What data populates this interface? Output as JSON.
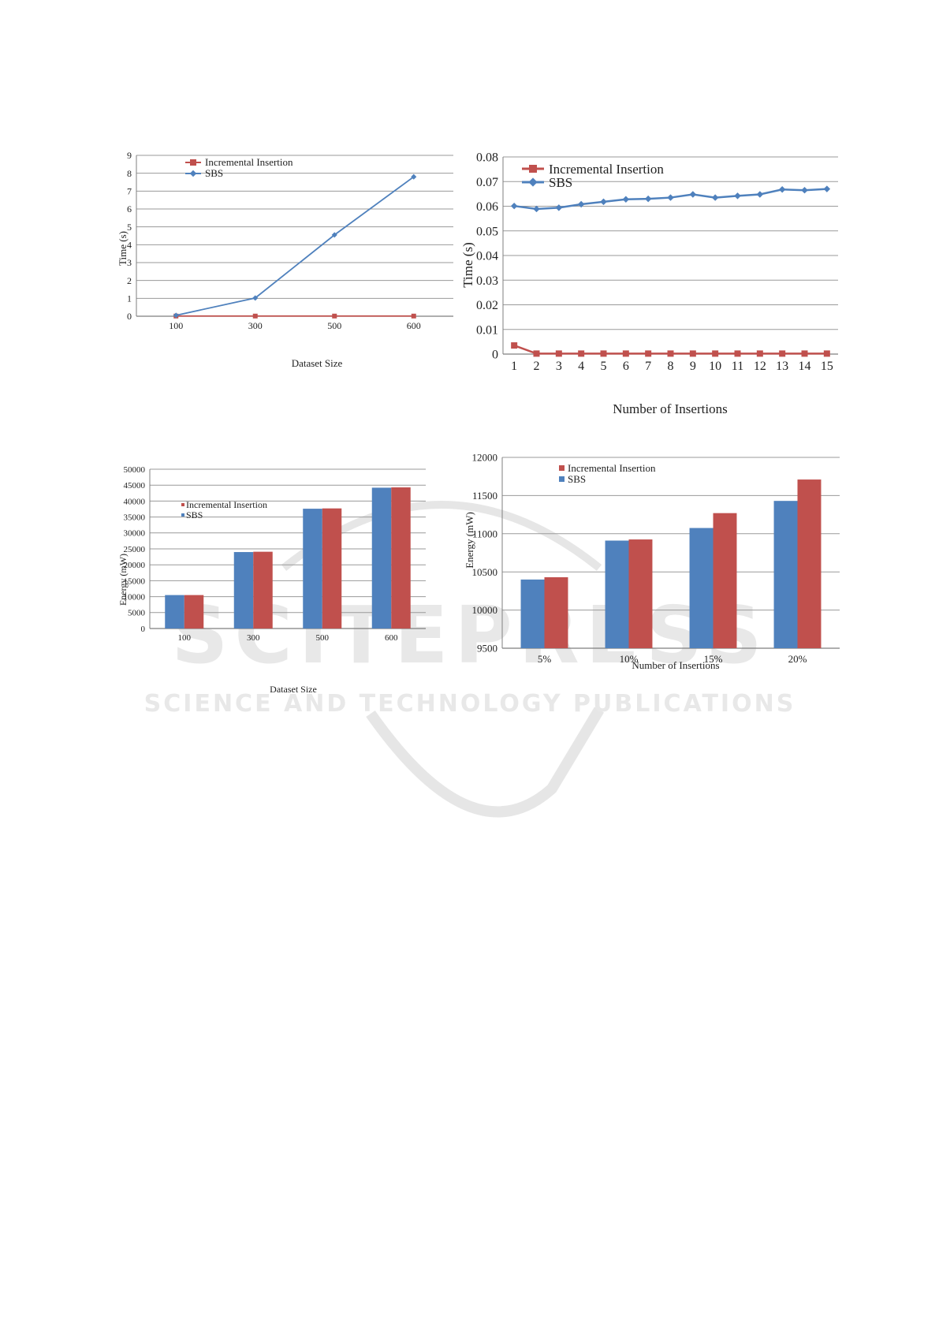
{
  "watermark": {
    "line1": "SCITEPRESS",
    "line2": "SCIENCE AND TECHNOLOGY PUBLICATIONS"
  },
  "colors": {
    "incremental": "#C0504D",
    "sbs": "#4F81BD",
    "grid": "#9a9a9a",
    "axis": "#7f7f7f"
  },
  "chart_data": [
    {
      "type": "line",
      "categories": [
        "100",
        "300",
        "500",
        "600"
      ],
      "series": [
        {
          "name": "Incremental Insertion",
          "values": [
            0.01,
            0.01,
            0.01,
            0.01
          ]
        },
        {
          "name": "SBS",
          "values": [
            0.05,
            1.02,
            4.55,
            7.8
          ]
        }
      ],
      "xlabel": "Dataset Size",
      "ylabel": "Time (s)",
      "ylim": [
        0,
        9
      ],
      "yticks": [
        "0",
        "1",
        "2",
        "3",
        "4",
        "5",
        "6",
        "7",
        "8",
        "9"
      ],
      "grid": true,
      "legend": "top-left"
    },
    {
      "type": "line",
      "categories": [
        "1",
        "2",
        "3",
        "4",
        "5",
        "6",
        "7",
        "8",
        "9",
        "10",
        "11",
        "12",
        "13",
        "14",
        "15"
      ],
      "series": [
        {
          "name": "Incremental Insertion",
          "values": [
            0.0035,
            0.0002,
            0.0002,
            0.0002,
            0.0002,
            0.0002,
            0.0002,
            0.0002,
            0.0002,
            0.0002,
            0.0002,
            0.0002,
            0.0002,
            0.0002,
            0.0002
          ]
        },
        {
          "name": "SBS",
          "values": [
            0.0601,
            0.0589,
            0.0594,
            0.0608,
            0.0618,
            0.0628,
            0.063,
            0.0635,
            0.0648,
            0.0635,
            0.0642,
            0.0648,
            0.0668,
            0.0665,
            0.067
          ]
        }
      ],
      "xlabel": "Number of Insertions",
      "ylabel": "Time (s)",
      "ylim": [
        0,
        0.08
      ],
      "yticks": [
        "0",
        "0.01",
        "0.02",
        "0.03",
        "0.04",
        "0.05",
        "0.06",
        "0.07",
        "0.08"
      ],
      "grid": true,
      "legend": "top-left"
    },
    {
      "type": "bar",
      "categories": [
        "100",
        "300",
        "500",
        "600"
      ],
      "series": [
        {
          "name": "Incremental Insertion",
          "values": [
            10500,
            24100,
            37700,
            44300
          ]
        },
        {
          "name": "SBS",
          "values": [
            10500,
            24000,
            37600,
            44200
          ]
        }
      ],
      "xlabel": "Dataset Size",
      "ylabel": "Energy (mW)",
      "ylim": [
        0,
        50000
      ],
      "yticks": [
        "0",
        "5000",
        "10000",
        "15000",
        "20000",
        "25000",
        "30000",
        "35000",
        "40000",
        "45000",
        "50000"
      ],
      "grid": true,
      "legend": "top-left"
    },
    {
      "type": "bar",
      "categories": [
        "5%",
        "10%",
        "15%",
        "20%"
      ],
      "series": [
        {
          "name": "Incremental Insertion",
          "values": [
            10430,
            10925,
            11270,
            11710
          ]
        },
        {
          "name": "SBS",
          "values": [
            10400,
            10910,
            11075,
            11430
          ]
        }
      ],
      "xlabel": "Number of Insertions",
      "ylabel": "Energy (mW)",
      "ylim": [
        9500,
        12000
      ],
      "yticks": [
        "9500",
        "10000",
        "10500",
        "11000",
        "11500",
        "12000"
      ],
      "grid": true,
      "legend": "top-left"
    }
  ]
}
